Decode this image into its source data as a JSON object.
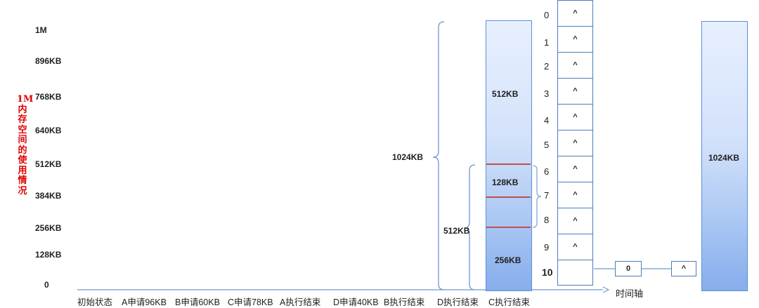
{
  "y_axis": {
    "labels": [
      "1M",
      "896KB",
      "768KB",
      "640KB",
      "512KB",
      "384KB",
      "256KB",
      "128KB",
      "0"
    ],
    "title": "1M内存空间的使用情况"
  },
  "x_axis": {
    "labels": [
      "初始状态",
      "A申请96KB",
      "B申请60KB",
      "C申请78KB",
      "A执行结束",
      "D申请40KB",
      "B执行结束",
      "D执行结束",
      "C执行结束"
    ],
    "arrow_label": "时间轴"
  },
  "brackets": {
    "outer": "1024KB",
    "inner": "512KB"
  },
  "column": {
    "segments": [
      "512KB",
      "128KB",
      "256KB"
    ]
  },
  "free_list": {
    "indices": [
      "0",
      "1",
      "2",
      "3",
      "4",
      "5",
      "6",
      "7",
      "8",
      "9",
      "10"
    ],
    "cells": [
      "^",
      "^",
      "^",
      "^",
      "^",
      "^",
      "^",
      "^",
      "^",
      "^",
      ""
    ],
    "chain": [
      "0",
      "^"
    ]
  },
  "final_column": {
    "label": "1024KB"
  },
  "colors": {
    "vertical_title": "#e00000",
    "block_border": "#5b8fd6",
    "split_lines": "#c0504d"
  }
}
